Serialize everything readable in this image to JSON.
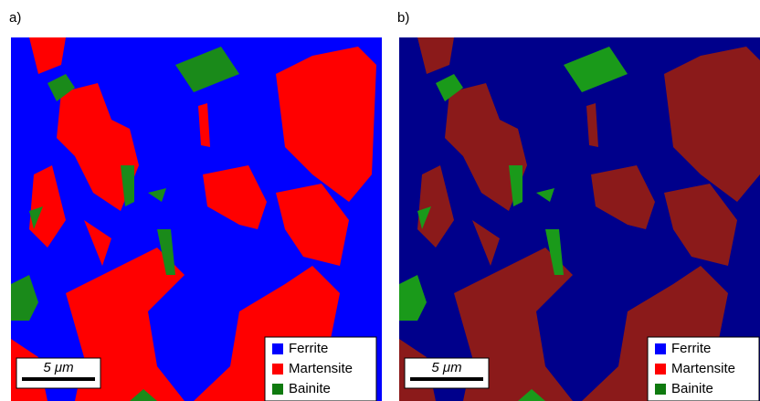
{
  "panels": [
    {
      "label": "a)",
      "scale_bar": "5 μm",
      "legend": [
        {
          "name": "Ferrite",
          "color": "#0000ff"
        },
        {
          "name": "Martensite",
          "color": "#ff0000"
        },
        {
          "name": "Bainite",
          "color": "#0f7a0f"
        }
      ]
    },
    {
      "label": "b)",
      "scale_bar": "5 μm",
      "legend": [
        {
          "name": "Ferrite",
          "color": "#0000ff"
        },
        {
          "name": "Martensite",
          "color": "#ff0000"
        },
        {
          "name": "Bainite",
          "color": "#0f7a0f"
        }
      ]
    }
  ]
}
